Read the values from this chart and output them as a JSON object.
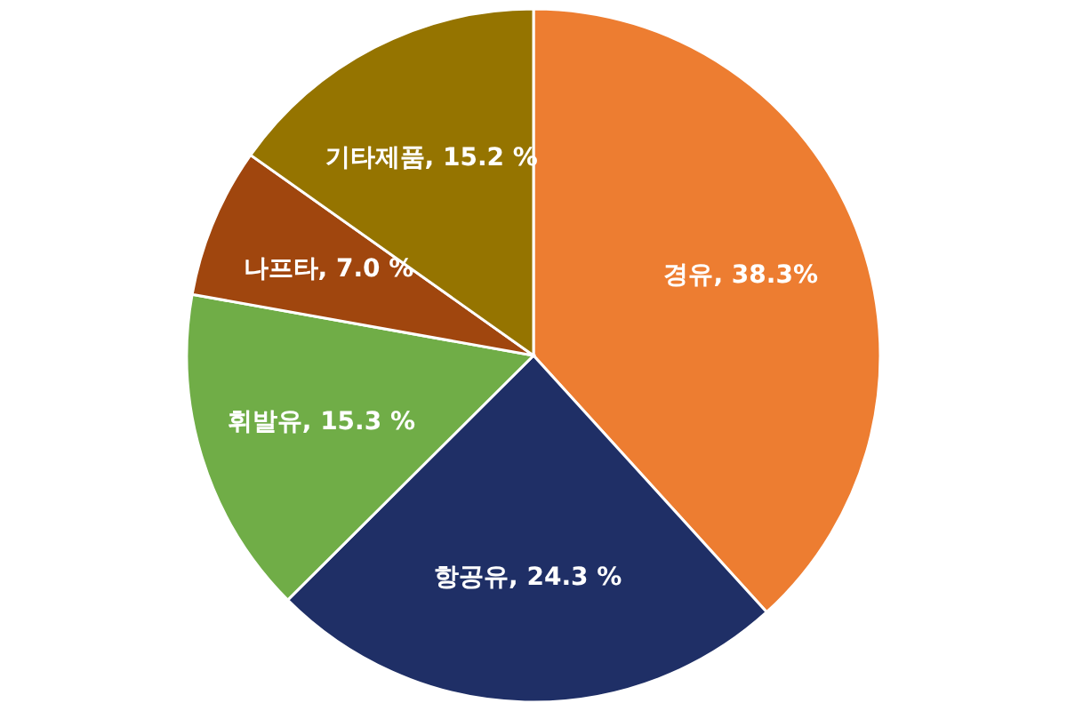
{
  "chart_data": {
    "type": "pie",
    "categories": [
      "경유",
      "항공유",
      "휘발유",
      "나프타",
      "기타제품"
    ],
    "values": [
      38.3,
      24.3,
      15.3,
      7.0,
      15.2
    ],
    "value_labels": [
      "38.3%",
      "24.3 %",
      "15.3 %",
      "7.0 %",
      "15.2 %"
    ],
    "colors": [
      "#ed7d31",
      "#1f2f66",
      "#70ad47",
      "#a0460e",
      "#957400"
    ],
    "legend": false
  }
}
